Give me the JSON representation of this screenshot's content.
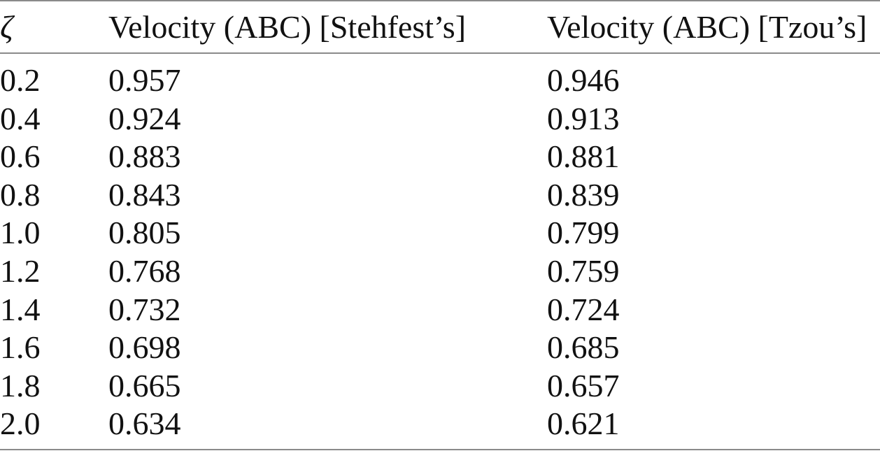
{
  "table": {
    "header": [
      "ζ",
      "Velocity (ABC) [Stehfest’s]",
      "Velocity (ABC) [Tzou’s]"
    ],
    "rows": [
      [
        "0.2",
        "0.957",
        "0.946"
      ],
      [
        "0.4",
        "0.924",
        "0.913"
      ],
      [
        "0.6",
        "0.883",
        "0.881"
      ],
      [
        "0.8",
        "0.843",
        "0.839"
      ],
      [
        "1.0",
        "0.805",
        "0.799"
      ],
      [
        "1.2",
        "0.768",
        "0.759"
      ],
      [
        "1.4",
        "0.732",
        "0.724"
      ],
      [
        "1.6",
        "0.698",
        "0.685"
      ],
      [
        "1.8",
        "0.665",
        "0.657"
      ],
      [
        "2.0",
        "0.634",
        "0.621"
      ]
    ]
  }
}
